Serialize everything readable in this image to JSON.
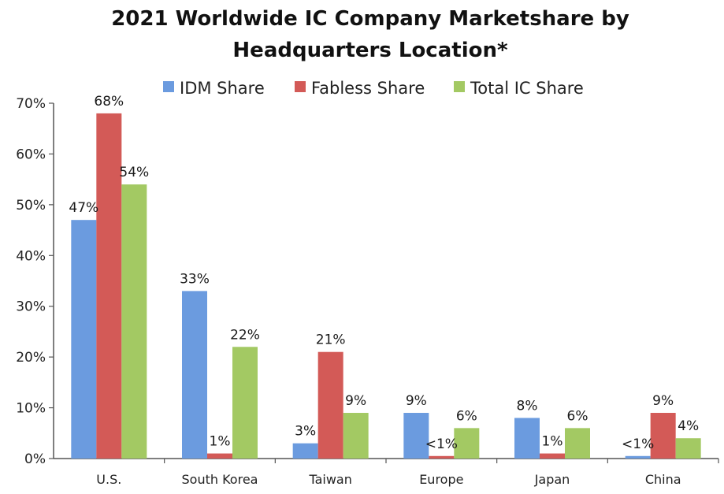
{
  "chart_data": {
    "type": "bar",
    "title_lines": [
      "2021 Worldwide IC Company Marketshare by",
      "Headquarters Location*"
    ],
    "categories": [
      "U.S.",
      "South Korea",
      "Taiwan",
      "Europe",
      "Japan",
      "China"
    ],
    "series": [
      {
        "name": "IDM Share",
        "color": "#6b9bdf",
        "values": [
          47,
          33,
          3,
          9,
          8,
          0.5
        ],
        "labels": [
          "47%",
          "33%",
          "3%",
          "9%",
          "8%",
          "<1%"
        ]
      },
      {
        "name": "Fabless Share",
        "color": "#d35a57",
        "values": [
          68,
          1,
          21,
          0.5,
          1,
          9
        ],
        "labels": [
          "68%",
          "1%",
          "21%",
          "<1%",
          "1%",
          "9%"
        ]
      },
      {
        "name": "Total IC Share",
        "color": "#a3c963",
        "values": [
          54,
          22,
          9,
          6,
          6,
          4
        ],
        "labels": [
          "54%",
          "22%",
          "9%",
          "6%",
          "6%",
          "4%"
        ]
      }
    ],
    "yticks": [
      "0%",
      "10%",
      "20%",
      "30%",
      "40%",
      "50%",
      "60%",
      "70%"
    ],
    "ylim": [
      0,
      70
    ],
    "xlabel": "",
    "ylabel": "",
    "legend_position": "top",
    "grid": false
  }
}
